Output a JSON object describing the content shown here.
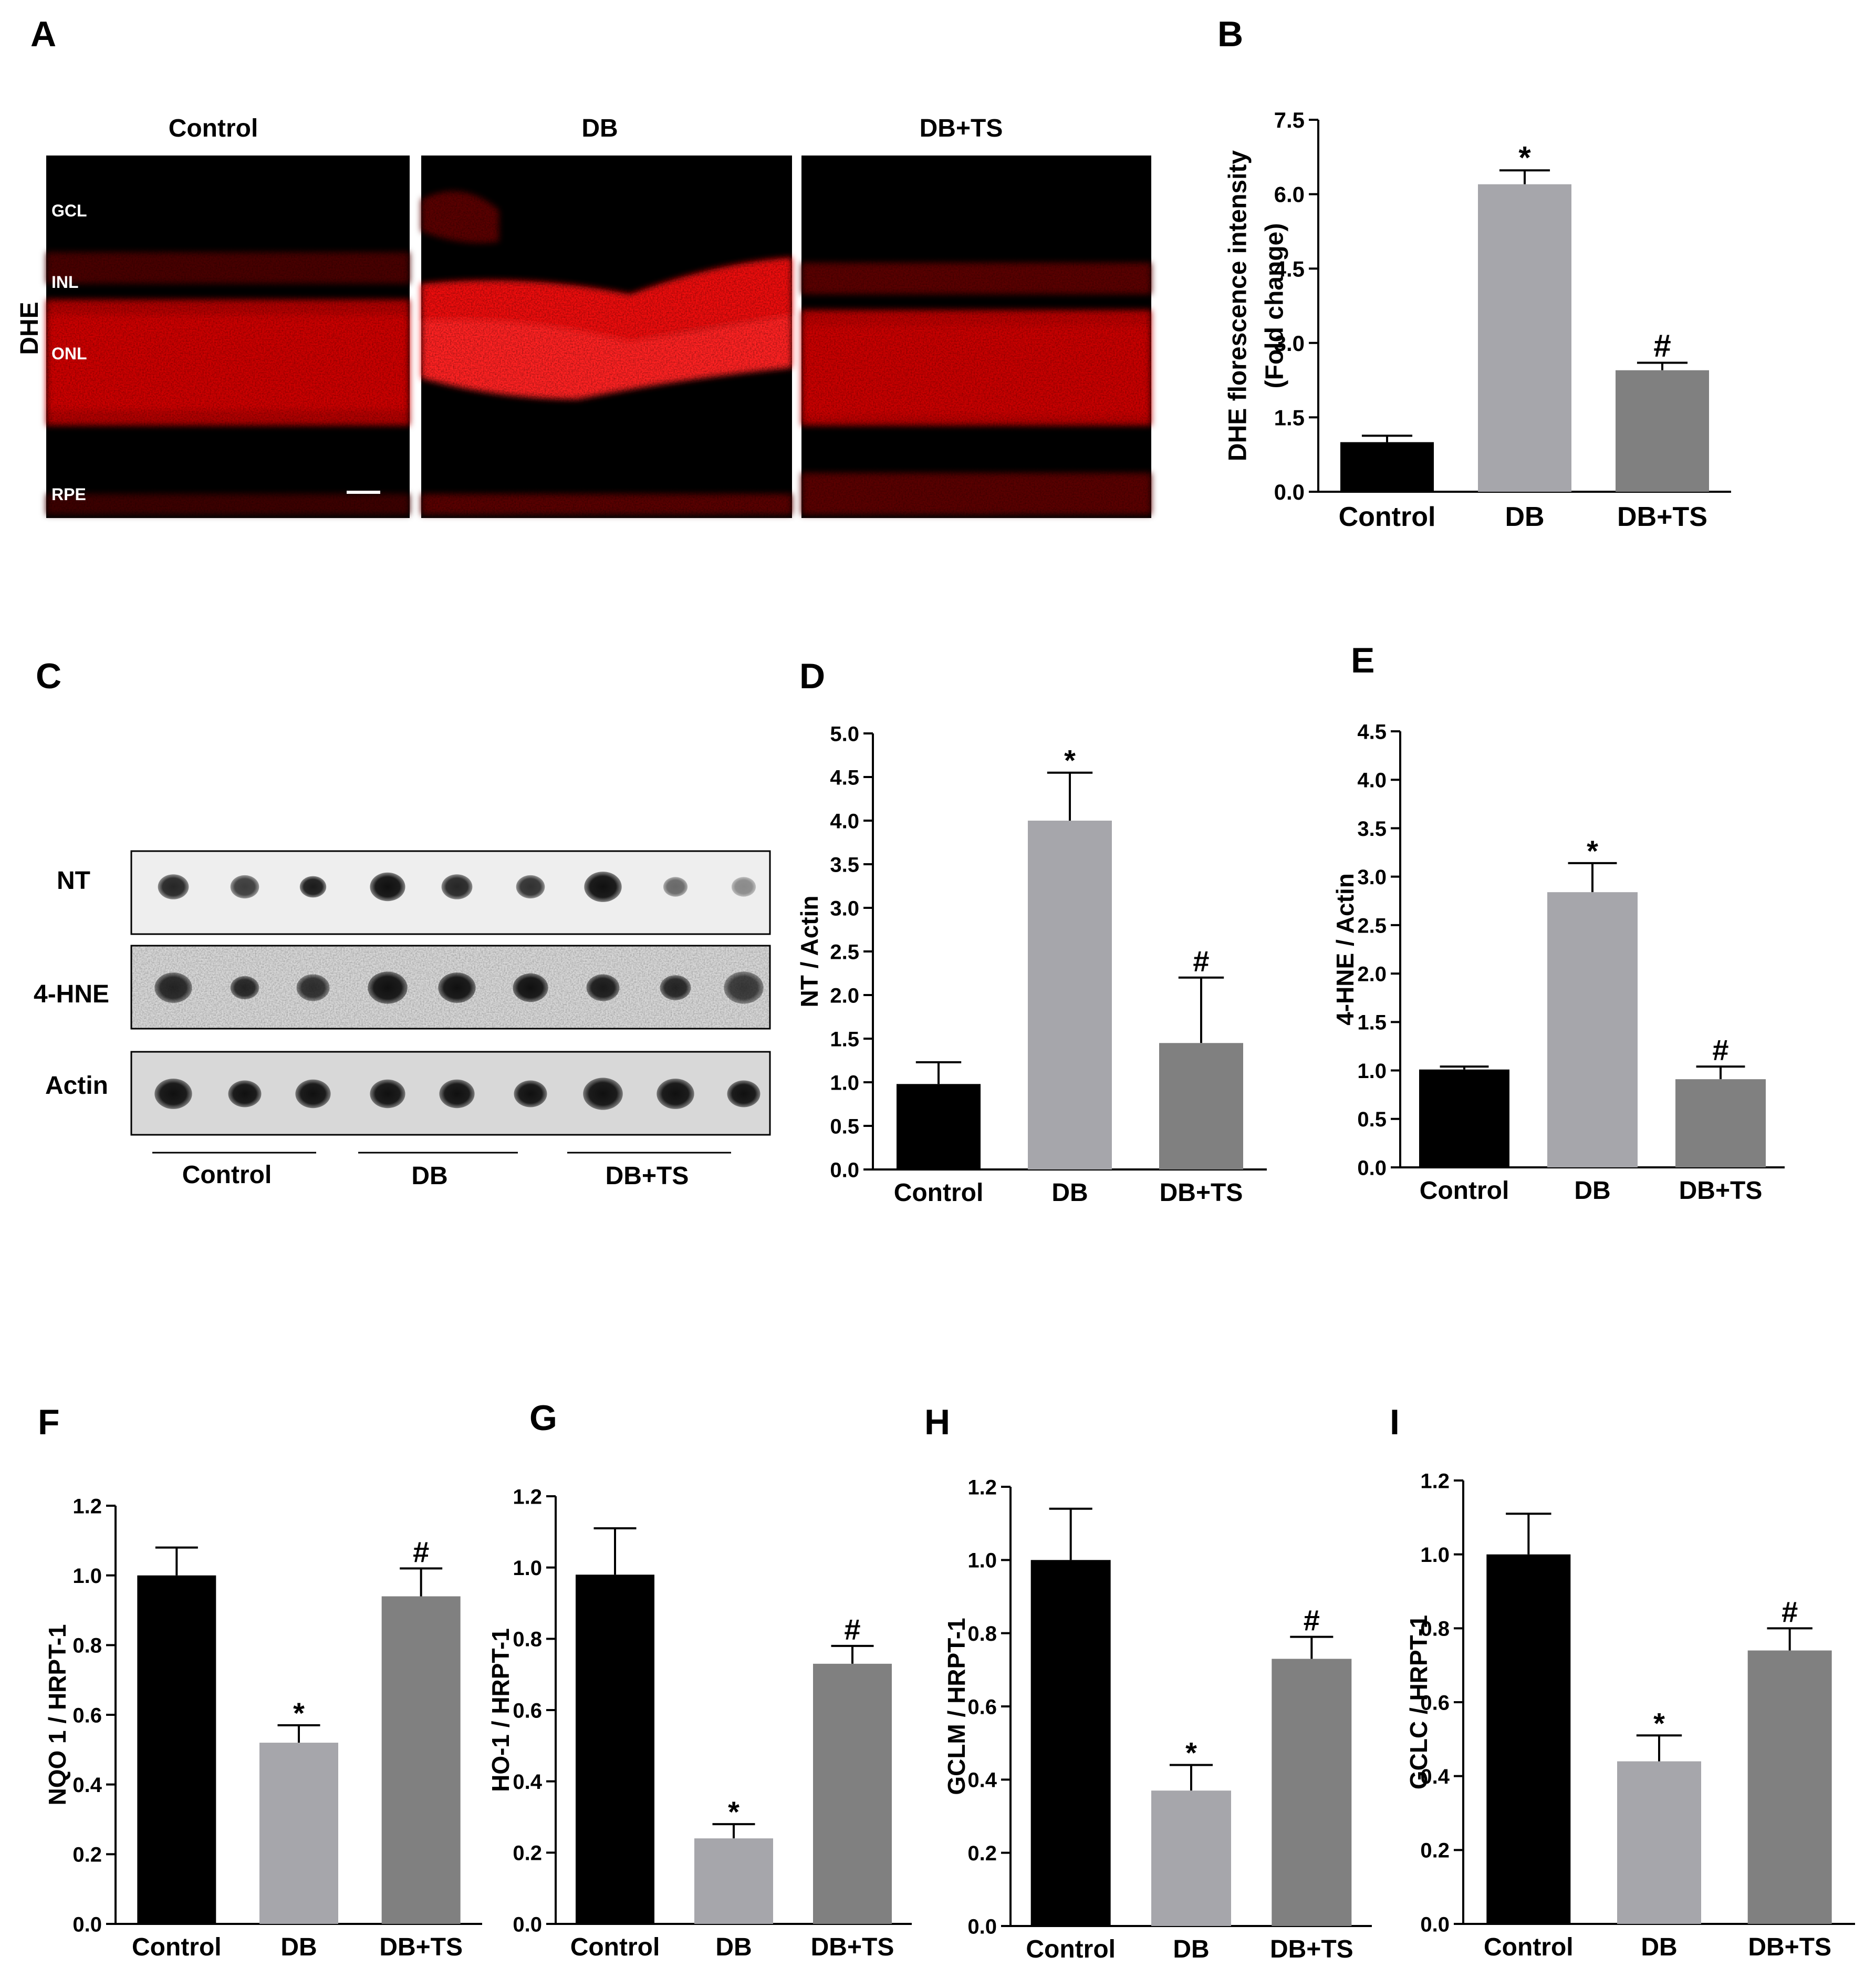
{
  "panel_labels": [
    "A",
    "B",
    "C",
    "D",
    "E",
    "F",
    "G",
    "H",
    "I"
  ],
  "panel_a": {
    "column_titles": [
      "Control",
      "DB",
      "DB+TS"
    ],
    "row_label": "DHE",
    "layer_labels": [
      "GCL",
      "INL",
      "ONL",
      "RPE"
    ],
    "colors": {
      "stain": "#ff1a1a",
      "background": "#000000"
    }
  },
  "panel_c": {
    "row_labels": [
      "NT",
      "4-HNE",
      "Actin"
    ],
    "group_labels": [
      "Control",
      "DB",
      "DB+TS"
    ]
  },
  "colors": {
    "control": "#000000",
    "db": "#a6a6ab",
    "dbts": "#808080"
  },
  "chart_data": [
    {
      "panel": "B",
      "type": "bar",
      "categories": [
        "Control",
        "DB",
        "DB+TS"
      ],
      "values": [
        1.0,
        6.2,
        2.45
      ],
      "errors": [
        0.13,
        0.28,
        0.15
      ],
      "significance": [
        "",
        "*",
        "#"
      ],
      "ylabel": "DHE florescence intensity",
      "ylabel2": "(Fold change)",
      "ylim": [
        0,
        7.5
      ],
      "yticks": [
        "0.0",
        "1.5",
        "3.0",
        "4.5",
        "6.0",
        "7.5"
      ]
    },
    {
      "panel": "D",
      "type": "bar",
      "categories": [
        "Control",
        "DB",
        "DB+TS"
      ],
      "values": [
        0.98,
        4.0,
        1.45
      ],
      "errors": [
        0.25,
        0.55,
        0.75
      ],
      "significance": [
        "",
        "*",
        "#"
      ],
      "ylabel": "NT / Actin",
      "ylim": [
        0,
        5.0
      ],
      "yticks": [
        "0.0",
        "0.5",
        "1.0",
        "1.5",
        "2.0",
        "2.5",
        "3.0",
        "3.5",
        "4.0",
        "4.5",
        "5.0"
      ]
    },
    {
      "panel": "E",
      "type": "bar",
      "categories": [
        "Control",
        "DB",
        "DB+TS"
      ],
      "values": [
        1.01,
        2.84,
        0.91
      ],
      "errors": [
        0.03,
        0.3,
        0.13
      ],
      "significance": [
        "",
        "*",
        "#"
      ],
      "ylabel": "4-HNE / Actin",
      "ylim": [
        0,
        4.5
      ],
      "yticks": [
        "0.0",
        "0.5",
        "1.0",
        "1.5",
        "2.0",
        "2.5",
        "3.0",
        "3.5",
        "4.0",
        "4.5"
      ]
    },
    {
      "panel": "F",
      "type": "bar",
      "categories": [
        "Control",
        "DB",
        "DB+TS"
      ],
      "values": [
        1.0,
        0.52,
        0.94
      ],
      "errors": [
        0.08,
        0.05,
        0.08
      ],
      "significance": [
        "",
        "*",
        "#"
      ],
      "ylabel": "NQO 1 / HRPT-1",
      "ylim": [
        0,
        1.2
      ],
      "yticks": [
        "0.0",
        "0.2",
        "0.4",
        "0.6",
        "0.8",
        "1.0",
        "1.2"
      ]
    },
    {
      "panel": "G",
      "type": "bar",
      "categories": [
        "Control",
        "DB",
        "DB+TS"
      ],
      "values": [
        0.98,
        0.24,
        0.73
      ],
      "errors": [
        0.13,
        0.04,
        0.05
      ],
      "significance": [
        "",
        "*",
        "#"
      ],
      "ylabel": "HO-1 / HRPT-1",
      "ylim": [
        0,
        1.2
      ],
      "yticks": [
        "0.0",
        "0.2",
        "0.4",
        "0.6",
        "0.8",
        "1.0",
        "1.2"
      ]
    },
    {
      "panel": "H",
      "type": "bar",
      "categories": [
        "Control",
        "DB",
        "DB+TS"
      ],
      "values": [
        1.0,
        0.37,
        0.73
      ],
      "errors": [
        0.14,
        0.07,
        0.06
      ],
      "significance": [
        "",
        "*",
        "#"
      ],
      "ylabel": "GCLM / HRPT-1",
      "ylim": [
        0,
        1.2
      ],
      "yticks": [
        "0.0",
        "0.2",
        "0.4",
        "0.6",
        "0.8",
        "1.0",
        "1.2"
      ]
    },
    {
      "panel": "I",
      "type": "bar",
      "categories": [
        "Control",
        "DB",
        "DB+TS"
      ],
      "values": [
        1.0,
        0.44,
        0.74
      ],
      "errors": [
        0.11,
        0.07,
        0.06
      ],
      "significance": [
        "",
        "*",
        "#"
      ],
      "ylabel": "GCLC / HRPT-1",
      "ylim": [
        0,
        1.2
      ],
      "yticks": [
        "0.0",
        "0.2",
        "0.4",
        "0.6",
        "0.8",
        "1.0",
        "1.2"
      ]
    }
  ]
}
